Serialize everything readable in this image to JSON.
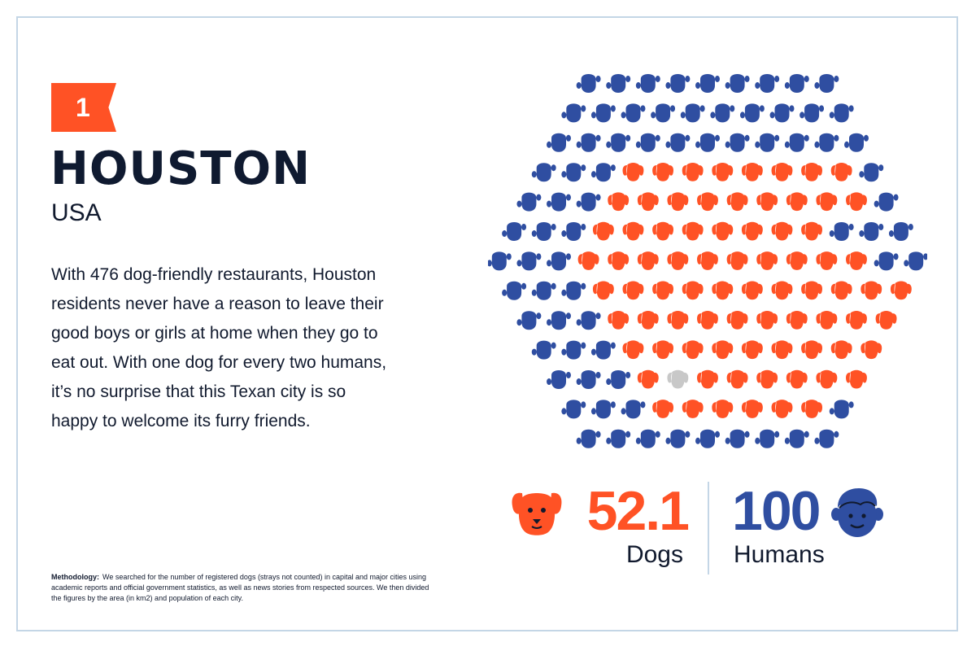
{
  "rank": "1",
  "city": "HOUSTON",
  "country": "USA",
  "description": "With 476 dog-friendly restaurants, Houston residents never have a reason to leave their good boys or girls at home when they go to eat out. With one dog for every two humans, it’s no surprise that this Texan city is so happy to welcome its furry friends.",
  "methodology": {
    "label": "Methodology:",
    "text": "We searched for the number of registered dogs (strays not counted) in capital and major cities using academic reports and official government statistics, as well as news stories from respected sources. We then divided the figures by the area (in km2) and population of each city."
  },
  "stats": {
    "dogs_value": "52.1",
    "dogs_label": "Dogs",
    "humans_value": "100",
    "humans_label": "Humans"
  },
  "waffle": {
    "row_counts": [
      9,
      10,
      11,
      12,
      13,
      14,
      15,
      14,
      13,
      12,
      11,
      10,
      9
    ],
    "dog_cells": [
      [
        3,
        8
      ],
      [
        3,
        9
      ],
      [
        3,
        8
      ],
      [
        3,
        10
      ],
      [
        3,
        11
      ],
      [
        3,
        10
      ],
      [
        3,
        9
      ],
      [
        3,
        8
      ],
      [
        3,
        6
      ]
    ],
    "partial_dog": {
      "row": 10,
      "col": 4
    },
    "colors": {
      "human": "#2f4ea1",
      "dog": "#ff5225",
      "partial": "#c8c8c8"
    }
  },
  "icons": {
    "dog": "dog-icon",
    "human": "human-icon"
  }
}
